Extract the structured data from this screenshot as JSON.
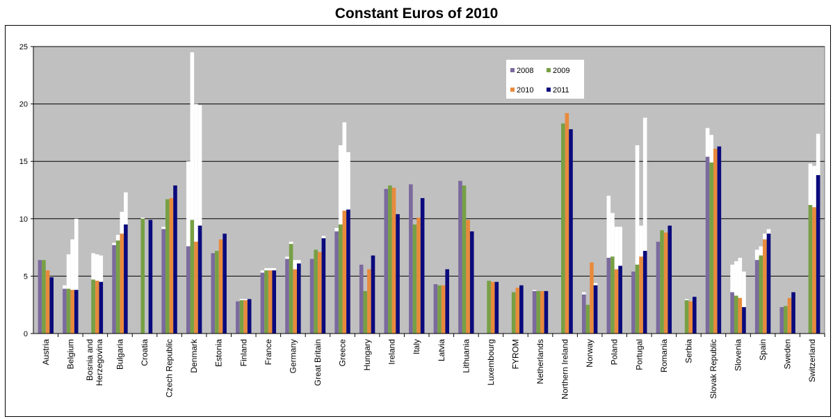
{
  "chart_data": {
    "type": "bar",
    "title": "Constant Euros of 2010",
    "xlabel": "",
    "ylabel": "",
    "ylim": [
      0,
      25
    ],
    "yticks": [
      0,
      5,
      10,
      15,
      20,
      25
    ],
    "grid": true,
    "legend_position": "top-right",
    "colors": {
      "2008": "#7b6a9e",
      "2009": "#77a045",
      "2010": "#e88a3c",
      "2011": "#0b0a7c",
      "plot_background": "#c0c0c0",
      "range_bar": "#ffffff"
    },
    "categories": [
      "Austria",
      "Belgium",
      "Bosnia and Herzegovina",
      "Bulgaria",
      "Croatia",
      "Czech Republic",
      "Denmark",
      "Estonia",
      "Finland",
      "France",
      "Germany",
      "Great Britain",
      "Greece",
      "Hungary",
      "Ireland",
      "Italy",
      "Latvia",
      "Lithuania",
      "Luxembourg",
      "FYROM",
      "Netherlands",
      "Northern Ireland",
      "Norway",
      "Poland",
      "Portugal",
      "Romania",
      "Serbia",
      "Slovak Republic",
      "Slovenia",
      "Spain",
      "Sweden",
      "Switzerland"
    ],
    "series": [
      {
        "name": "2008",
        "values": [
          6.4,
          3.9,
          null,
          7.7,
          null,
          9.1,
          7.6,
          7.0,
          2.8,
          5.3,
          6.5,
          6.5,
          8.9,
          6.0,
          12.6,
          13.0,
          4.3,
          13.3,
          null,
          null,
          3.7,
          null,
          3.4,
          6.6,
          5.4,
          8.0,
          null,
          15.4,
          3.6,
          6.4,
          2.3,
          null
        ]
      },
      {
        "name": "2009",
        "values": [
          6.4,
          3.9,
          4.7,
          8.1,
          10.0,
          11.7,
          9.9,
          7.2,
          2.9,
          5.5,
          7.8,
          7.3,
          9.5,
          3.7,
          12.9,
          9.5,
          4.2,
          12.9,
          4.6,
          3.6,
          3.7,
          18.3,
          2.5,
          6.7,
          6.0,
          9.0,
          2.9,
          14.9,
          3.3,
          6.8,
          2.4,
          11.2
        ]
      },
      {
        "name": "2010",
        "values": [
          5.5,
          3.8,
          4.6,
          8.7,
          null,
          11.8,
          8.0,
          8.2,
          2.9,
          5.5,
          5.6,
          7.1,
          10.7,
          5.6,
          12.7,
          10.1,
          4.2,
          9.9,
          4.5,
          4.0,
          3.7,
          19.2,
          6.2,
          5.6,
          6.7,
          8.8,
          2.8,
          16.1,
          3.1,
          8.2,
          3.1,
          11.0
        ]
      },
      {
        "name": "2011",
        "values": [
          4.9,
          3.8,
          4.5,
          9.5,
          9.9,
          12.9,
          9.4,
          8.7,
          3.0,
          5.5,
          6.1,
          8.3,
          10.8,
          6.8,
          10.4,
          11.8,
          5.6,
          8.9,
          4.5,
          4.2,
          3.7,
          17.8,
          4.2,
          5.9,
          7.2,
          9.4,
          3.2,
          16.3,
          2.3,
          8.7,
          3.6,
          13.8
        ]
      }
    ],
    "upper_range": [
      [
        6.4,
        4.2,
        null,
        7.9,
        null,
        9.3,
        15.0,
        7.0,
        2.8,
        5.5,
        6.7,
        6.5,
        9.2,
        6.0,
        12.6,
        13.0,
        4.3,
        13.3,
        null,
        null,
        3.8,
        null,
        3.6,
        12.0,
        5.4,
        8.0,
        null,
        17.9,
        6.0,
        7.3,
        2.3,
        null
      ],
      [
        6.4,
        6.9,
        7.0,
        8.6,
        10.1,
        11.7,
        24.5,
        7.2,
        3.0,
        5.7,
        8.0,
        7.3,
        16.4,
        3.7,
        12.9,
        9.5,
        4.2,
        12.9,
        4.6,
        3.6,
        3.7,
        18.3,
        2.5,
        10.5,
        16.4,
        9.0,
        3.0,
        17.3,
        6.3,
        7.6,
        2.4,
        14.8
      ],
      [
        5.5,
        8.2,
        6.9,
        10.6,
        null,
        11.8,
        20.0,
        8.2,
        3.0,
        5.7,
        6.4,
        7.1,
        18.4,
        5.6,
        12.7,
        10.1,
        4.2,
        9.9,
        4.5,
        4.0,
        3.7,
        19.2,
        6.2,
        9.3,
        9.4,
        8.8,
        2.8,
        16.1,
        6.6,
        8.7,
        3.1,
        14.6
      ],
      [
        4.9,
        10.0,
        6.8,
        12.3,
        9.9,
        12.9,
        19.9,
        8.7,
        3.0,
        5.7,
        6.4,
        8.5,
        15.8,
        6.8,
        10.4,
        11.8,
        5.6,
        8.9,
        4.5,
        4.2,
        3.7,
        17.8,
        4.4,
        9.3,
        18.8,
        9.4,
        3.2,
        16.3,
        5.4,
        9.1,
        3.6,
        17.4
      ]
    ]
  }
}
